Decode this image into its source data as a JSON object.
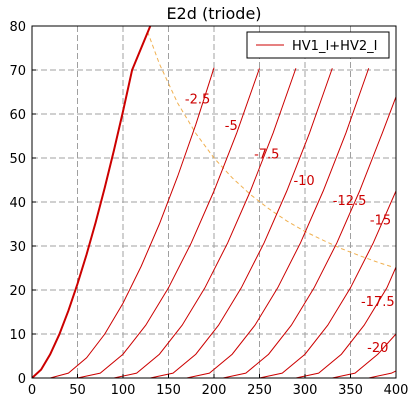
{
  "chart_data": {
    "type": "line",
    "title": "E2d (triode)",
    "xlabel": "",
    "ylabel": "",
    "xlim": [
      0,
      400
    ],
    "ylim": [
      0,
      80
    ],
    "x_ticks": [
      "0",
      "50",
      "100",
      "150",
      "200",
      "250",
      "300",
      "350",
      "400"
    ],
    "y_ticks": [
      "0",
      "10",
      "20",
      "30",
      "40",
      "50",
      "60",
      "70",
      "80"
    ],
    "grid": true,
    "legend": {
      "label": "HV1_I+HV2_I",
      "placement": "top-right"
    },
    "colors": {
      "curve": "#cc0000",
      "max_dissipation": "#f0b050",
      "grid": "#a0a0a0"
    },
    "series": [
      {
        "label": "",
        "x": [
          0,
          10,
          20,
          30,
          40,
          50,
          60,
          70,
          80,
          90,
          100,
          110,
          120,
          130,
          140,
          150
        ],
        "y": [
          0,
          1.9,
          5.4,
          9.9,
          15.3,
          21.4,
          28.1,
          35.4,
          43.3,
          51.7,
          60.6,
          70.0,
          75.0,
          80.0,
          85.0,
          90.0
        ]
      },
      {
        "label": "-2.5",
        "x": [
          0,
          20,
          40,
          60,
          80,
          100,
          120,
          140,
          160,
          180,
          200
        ],
        "y": [
          0,
          0,
          1.1,
          4.6,
          10.0,
          17.0,
          25.4,
          35.0,
          45.8,
          57.6,
          70.5
        ]
      },
      {
        "label": "-5",
        "x": [
          0,
          50,
          75,
          100,
          125,
          150,
          175,
          200,
          225,
          250
        ],
        "y": [
          0,
          0,
          1.1,
          5.4,
          12.0,
          20.5,
          30.7,
          42.5,
          55.7,
          70.4
        ]
      },
      {
        "label": "-7.5",
        "x": [
          0,
          90,
          115,
          140,
          165,
          190,
          215,
          240,
          265,
          290
        ],
        "y": [
          0,
          0,
          1.1,
          5.4,
          12.0,
          20.5,
          30.7,
          42.5,
          55.7,
          70.4
        ]
      },
      {
        "label": "-10",
        "x": [
          0,
          130,
          155,
          180,
          205,
          230,
          255,
          280,
          305,
          330
        ],
        "y": [
          0,
          0,
          1.1,
          5.4,
          12.0,
          20.5,
          30.7,
          42.5,
          55.7,
          70.4
        ]
      },
      {
        "label": "-12.5",
        "x": [
          0,
          170,
          195,
          220,
          245,
          270,
          295,
          320,
          345,
          370
        ],
        "y": [
          0,
          0,
          1.1,
          5.4,
          12.0,
          20.5,
          30.7,
          42.5,
          55.7,
          70.4
        ]
      },
      {
        "label": "-15",
        "x": [
          0,
          210,
          235,
          260,
          285,
          310,
          335,
          360,
          385,
          400
        ],
        "y": [
          0,
          0,
          1.1,
          5.4,
          12.0,
          20.5,
          30.7,
          42.5,
          55.7,
          63.9
        ]
      },
      {
        "label": "-17.5",
        "x": [
          0,
          250,
          275,
          300,
          325,
          350,
          375,
          400
        ],
        "y": [
          0,
          0,
          1.1,
          5.4,
          12.0,
          20.5,
          30.7,
          42.5
        ]
      },
      {
        "label": "-20",
        "x": [
          0,
          290,
          315,
          340,
          365,
          390,
          400
        ],
        "y": [
          0,
          0,
          1.1,
          5.4,
          12.0,
          20.5,
          25.2
        ]
      },
      {
        "label": "",
        "x": [
          0,
          330,
          355,
          380,
          400
        ],
        "y": [
          0,
          0,
          1.1,
          5.4,
          10.0
        ]
      },
      {
        "label": "",
        "x": [
          0,
          370,
          395,
          400
        ],
        "y": [
          0,
          0,
          1.1,
          1.6
        ]
      }
    ],
    "max_dissipation_curve": {
      "x": [
        127,
        140,
        160,
        180,
        200,
        220,
        240,
        260,
        280,
        300,
        320,
        340,
        360,
        380,
        395
      ],
      "y": [
        78.7,
        71.4,
        62.5,
        55.6,
        50.0,
        45.5,
        41.7,
        38.5,
        35.7,
        33.3,
        31.3,
        29.4,
        27.8,
        26.3,
        25.3
      ]
    },
    "curve_labels": [
      {
        "text": "-2.5",
        "x": 182,
        "y": 63.5
      },
      {
        "text": "-5",
        "x": 219,
        "y": 57.5
      },
      {
        "text": "-7.5",
        "x": 258,
        "y": 51
      },
      {
        "text": "-10",
        "x": 299,
        "y": 45
      },
      {
        "text": "-12.5",
        "x": 349,
        "y": 40.5
      },
      {
        "text": "-15",
        "x": 383,
        "y": 36
      },
      {
        "text": "-17.5",
        "x": 380,
        "y": 17.5
      },
      {
        "text": "-20",
        "x": 380,
        "y": 7
      }
    ]
  }
}
